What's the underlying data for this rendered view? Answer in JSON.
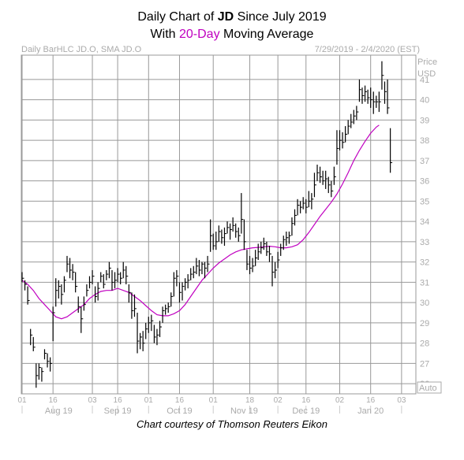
{
  "title": {
    "pre": "Daily Chart of ",
    "ticker": "JD",
    "post": " Since July 2019",
    "line2_pre": "With ",
    "line2_accent": "20-Day",
    "line2_post": " Moving Average"
  },
  "subtitle_left": "Daily BarHLC JD.O, SMA JD.O",
  "subtitle_right": "7/29/2019 - 2/4/2020 (EST)",
  "caption": "Chart courtesy of Thomson Reuters Eikon",
  "auto_label": "Auto",
  "colors": {
    "bars": "#000000",
    "sma": "#c000c0",
    "grid": "#999999",
    "axis_text": "#aaaaaa"
  },
  "chart_data": {
    "type": "line",
    "y_axis": {
      "label_line1": "Price",
      "label_line2": "USD",
      "ylim": [
        25.5,
        42.2
      ],
      "ticks": [
        26,
        27,
        28,
        29,
        30,
        31,
        32,
        33,
        34,
        35,
        36,
        37,
        38,
        39,
        40,
        41
      ]
    },
    "x_axis": {
      "day_ticks": [
        {
          "label": "01",
          "i": 0
        },
        {
          "label": "16",
          "i": 11
        },
        {
          "label": "03",
          "i": 25
        },
        {
          "label": "16",
          "i": 34
        },
        {
          "label": "01",
          "i": 45
        },
        {
          "label": "16",
          "i": 56
        },
        {
          "label": "01",
          "i": 68
        },
        {
          "label": "18",
          "i": 81
        },
        {
          "label": "02",
          "i": 91
        },
        {
          "label": "16",
          "i": 101
        },
        {
          "label": "02",
          "i": 113
        },
        {
          "label": "16",
          "i": 124
        },
        {
          "label": "03",
          "i": 135
        }
      ],
      "month_labels": [
        {
          "label": "Aug 19",
          "i": 13
        },
        {
          "label": "Sep 19",
          "i": 34
        },
        {
          "label": "Oct 19",
          "i": 56
        },
        {
          "label": "Nov 19",
          "i": 79
        },
        {
          "label": "Dec 19",
          "i": 101
        },
        {
          "label": "Jan 20",
          "i": 124
        }
      ],
      "last_index": 137
    },
    "bars": [
      [
        31.5,
        31.0,
        31.2
      ],
      [
        31.1,
        30.6,
        30.9
      ],
      [
        30.8,
        29.9,
        30.1
      ],
      [
        28.7,
        27.9,
        28.4
      ],
      [
        28.3,
        27.6,
        27.8
      ],
      [
        27.0,
        25.8,
        26.4
      ],
      [
        27.0,
        26.2,
        26.8
      ],
      [
        26.8,
        26.1,
        26.6
      ],
      [
        27.7,
        27.2,
        27.5
      ],
      [
        27.5,
        26.8,
        27.1
      ],
      [
        27.3,
        26.6,
        27.0
      ],
      [
        29.8,
        28.1,
        29.5
      ],
      [
        31.2,
        29.8,
        30.6
      ],
      [
        31.1,
        30.2,
        30.8
      ],
      [
        30.9,
        29.9,
        30.4
      ],
      [
        31.3,
        30.5,
        31.1
      ],
      [
        32.3,
        31.5,
        31.9
      ],
      [
        32.2,
        31.2,
        31.6
      ],
      [
        31.9,
        31.1,
        31.5
      ],
      [
        31.5,
        30.5,
        30.8
      ],
      [
        30.3,
        29.5,
        29.8
      ],
      [
        29.8,
        28.5,
        29.2
      ],
      [
        30.3,
        29.6,
        29.9
      ],
      [
        30.9,
        30.3,
        30.6
      ],
      [
        31.3,
        30.7,
        31.0
      ],
      [
        31.6,
        30.9,
        31.3
      ],
      [
        30.8,
        30.0,
        30.3
      ],
      [
        31.0,
        30.1,
        30.7
      ],
      [
        31.5,
        31.0,
        31.3
      ],
      [
        31.4,
        30.7,
        30.9
      ],
      [
        31.6,
        31.1,
        31.4
      ],
      [
        32.0,
        31.2,
        31.7
      ],
      [
        31.6,
        30.6,
        31.0
      ],
      [
        31.5,
        30.7,
        31.1
      ],
      [
        31.7,
        31.0,
        31.4
      ],
      [
        31.5,
        30.9,
        31.2
      ],
      [
        32.0,
        31.2,
        31.6
      ],
      [
        31.8,
        30.9,
        31.3
      ],
      [
        30.9,
        30.0,
        30.5
      ],
      [
        30.5,
        29.2,
        29.6
      ],
      [
        30.4,
        29.3,
        29.7
      ],
      [
        29.5,
        27.5,
        28.1
      ],
      [
        28.5,
        27.7,
        28.3
      ],
      [
        28.6,
        27.6,
        28.0
      ],
      [
        29.0,
        28.2,
        28.7
      ],
      [
        29.3,
        28.5,
        29.0
      ],
      [
        29.4,
        28.6,
        29.1
      ],
      [
        28.9,
        28.0,
        28.3
      ],
      [
        28.7,
        27.9,
        28.4
      ],
      [
        29.1,
        28.3,
        28.8
      ],
      [
        29.8,
        29.0,
        29.6
      ],
      [
        29.9,
        29.4,
        29.7
      ],
      [
        30.0,
        29.5,
        29.8
      ],
      [
        30.5,
        29.8,
        30.3
      ],
      [
        31.5,
        30.3,
        31.2
      ],
      [
        31.6,
        30.8,
        31.3
      ],
      [
        31.0,
        30.0,
        30.5
      ],
      [
        31.0,
        30.1,
        30.8
      ],
      [
        31.2,
        30.6,
        31.0
      ],
      [
        31.4,
        30.7,
        31.1
      ],
      [
        31.7,
        31.1,
        31.4
      ],
      [
        31.8,
        31.2,
        31.5
      ],
      [
        32.2,
        31.4,
        31.8
      ],
      [
        32.1,
        31.3,
        31.6
      ],
      [
        32.0,
        31.4,
        31.9
      ],
      [
        32.0,
        31.2,
        31.7
      ],
      [
        32.3,
        31.5,
        31.9
      ],
      [
        34.1,
        32.5,
        33.3
      ],
      [
        33.4,
        32.6,
        32.8
      ],
      [
        33.5,
        32.6,
        33.0
      ],
      [
        33.8,
        33.0,
        33.5
      ],
      [
        33.6,
        32.9,
        33.2
      ],
      [
        33.7,
        32.8,
        33.4
      ],
      [
        34.0,
        33.4,
        33.7
      ],
      [
        33.9,
        33.1,
        33.6
      ],
      [
        34.2,
        33.5,
        33.8
      ],
      [
        33.9,
        33.2,
        33.5
      ],
      [
        33.7,
        33.0,
        33.3
      ],
      [
        35.4,
        33.4,
        34.1
      ],
      [
        34.1,
        32.6,
        33.0
      ],
      [
        32.6,
        31.6,
        31.9
      ],
      [
        32.3,
        31.4,
        31.7
      ],
      [
        32.2,
        31.5,
        31.8
      ],
      [
        32.6,
        31.8,
        32.2
      ],
      [
        32.9,
        32.1,
        32.5
      ],
      [
        33.0,
        32.4,
        32.7
      ],
      [
        33.2,
        32.6,
        32.9
      ],
      [
        33.0,
        32.3,
        32.5
      ],
      [
        32.8,
        32.0,
        32.4
      ],
      [
        32.3,
        30.8,
        31.5
      ],
      [
        32.0,
        31.2,
        31.6
      ],
      [
        32.5,
        31.7,
        32.1
      ],
      [
        32.9,
        32.3,
        32.7
      ],
      [
        33.3,
        32.6,
        33.1
      ],
      [
        33.5,
        32.8,
        33.2
      ],
      [
        33.5,
        32.9,
        33.3
      ],
      [
        34.2,
        33.3,
        33.9
      ],
      [
        34.6,
        33.8,
        34.3
      ],
      [
        35.1,
        34.3,
        34.8
      ],
      [
        35.0,
        34.4,
        34.7
      ],
      [
        35.2,
        34.6,
        34.9
      ],
      [
        35.1,
        34.4,
        34.7
      ],
      [
        35.5,
        34.7,
        35.0
      ],
      [
        35.4,
        34.6,
        35.1
      ],
      [
        36.4,
        35.2,
        35.8
      ],
      [
        36.8,
        36.0,
        36.4
      ],
      [
        36.7,
        35.9,
        36.2
      ],
      [
        36.5,
        35.8,
        36.0
      ],
      [
        36.5,
        35.6,
        36.1
      ],
      [
        36.2,
        35.4,
        35.8
      ],
      [
        36.0,
        35.2,
        35.5
      ],
      [
        36.7,
        35.8,
        36.2
      ],
      [
        38.5,
        36.8,
        37.6
      ],
      [
        38.5,
        37.5,
        38.0
      ],
      [
        38.4,
        37.6,
        37.9
      ],
      [
        38.7,
        37.9,
        38.3
      ],
      [
        39.0,
        38.3,
        38.7
      ],
      [
        39.3,
        38.6,
        38.9
      ],
      [
        39.5,
        38.8,
        39.2
      ],
      [
        39.7,
        39.0,
        39.4
      ],
      [
        41.0,
        39.9,
        40.5
      ],
      [
        40.6,
        39.8,
        40.2
      ],
      [
        40.7,
        39.9,
        40.4
      ],
      [
        40.5,
        39.8,
        40.1
      ],
      [
        40.6,
        39.6,
        40.0
      ],
      [
        40.4,
        39.3,
        39.9
      ],
      [
        40.2,
        39.6,
        39.9
      ],
      [
        40.4,
        39.4,
        39.9
      ],
      [
        41.9,
        40.5,
        41.2
      ],
      [
        40.9,
        39.8,
        40.4
      ],
      [
        41.0,
        39.3,
        39.6
      ],
      [
        38.6,
        36.4,
        36.9
      ]
    ],
    "sma": [
      [
        0,
        31.1
      ],
      [
        2,
        30.9
      ],
      [
        4,
        30.6
      ],
      [
        6,
        30.2
      ],
      [
        8,
        29.9
      ],
      [
        10,
        29.6
      ],
      [
        12,
        29.3
      ],
      [
        14,
        29.2
      ],
      [
        16,
        29.3
      ],
      [
        18,
        29.5
      ],
      [
        20,
        29.7
      ],
      [
        22,
        29.9
      ],
      [
        24,
        30.2
      ],
      [
        26,
        30.4
      ],
      [
        28,
        30.55
      ],
      [
        30,
        30.6
      ],
      [
        32,
        30.6
      ],
      [
        34,
        30.7
      ],
      [
        36,
        30.6
      ],
      [
        38,
        30.5
      ],
      [
        40,
        30.3
      ],
      [
        42,
        30.1
      ],
      [
        44,
        29.85
      ],
      [
        46,
        29.6
      ],
      [
        48,
        29.4
      ],
      [
        50,
        29.35
      ],
      [
        52,
        29.35
      ],
      [
        54,
        29.45
      ],
      [
        56,
        29.6
      ],
      [
        58,
        29.9
      ],
      [
        60,
        30.3
      ],
      [
        62,
        30.7
      ],
      [
        64,
        31.1
      ],
      [
        66,
        31.4
      ],
      [
        68,
        31.7
      ],
      [
        70,
        31.95
      ],
      [
        72,
        32.15
      ],
      [
        74,
        32.35
      ],
      [
        76,
        32.5
      ],
      [
        78,
        32.6
      ],
      [
        80,
        32.65
      ],
      [
        82,
        32.7
      ],
      [
        84,
        32.72
      ],
      [
        86,
        32.75
      ],
      [
        88,
        32.78
      ],
      [
        90,
        32.75
      ],
      [
        92,
        32.7
      ],
      [
        94,
        32.7
      ],
      [
        96,
        32.75
      ],
      [
        98,
        32.85
      ],
      [
        100,
        33.1
      ],
      [
        102,
        33.45
      ],
      [
        104,
        33.85
      ],
      [
        106,
        34.25
      ],
      [
        108,
        34.6
      ],
      [
        110,
        34.95
      ],
      [
        112,
        35.35
      ],
      [
        114,
        35.85
      ],
      [
        116,
        36.4
      ],
      [
        118,
        37.0
      ],
      [
        120,
        37.5
      ],
      [
        122,
        37.95
      ],
      [
        124,
        38.35
      ],
      [
        126,
        38.65
      ],
      [
        127,
        38.75
      ]
    ]
  }
}
